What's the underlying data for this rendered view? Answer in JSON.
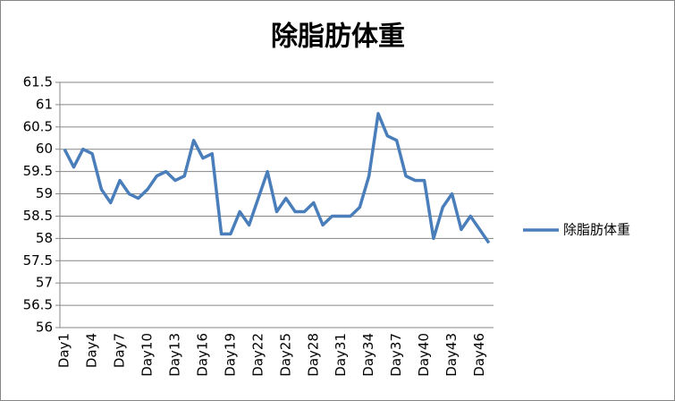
{
  "chart_data": {
    "type": "line",
    "title": "除脂肪体重",
    "categories": [
      "Day1",
      null,
      null,
      "Day4",
      null,
      null,
      "Day7",
      null,
      null,
      "Day10",
      null,
      null,
      "Day13",
      null,
      null,
      "Day16",
      null,
      null,
      "Day19",
      null,
      null,
      "Day22",
      null,
      null,
      "Day25",
      null,
      null,
      "Day28",
      null,
      null,
      "Day31",
      null,
      null,
      "Day34",
      null,
      null,
      "Day37",
      null,
      null,
      "Day40",
      null,
      null,
      "Day43",
      null,
      null,
      "Day46",
      null
    ],
    "series": [
      {
        "name": "除脂肪体重",
        "color": "#4a7ebb",
        "values": [
          60.0,
          59.6,
          60.0,
          59.9,
          59.1,
          58.8,
          59.3,
          59.0,
          58.9,
          59.1,
          59.4,
          59.5,
          59.3,
          59.4,
          60.2,
          59.8,
          59.9,
          58.1,
          58.1,
          58.6,
          58.3,
          58.9,
          59.5,
          58.6,
          58.9,
          58.6,
          58.6,
          58.8,
          58.3,
          58.5,
          58.5,
          58.5,
          58.7,
          59.4,
          60.8,
          60.3,
          60.2,
          59.4,
          59.3,
          59.3,
          58.0,
          58.7,
          59.0,
          58.2,
          58.5,
          58.2,
          57.9
        ]
      }
    ],
    "ylim": [
      56,
      61.5
    ],
    "yticks": [
      56,
      56.5,
      57,
      57.5,
      58,
      58.5,
      59,
      59.5,
      60,
      60.5,
      61,
      61.5
    ],
    "grid": true,
    "legend": "right"
  }
}
